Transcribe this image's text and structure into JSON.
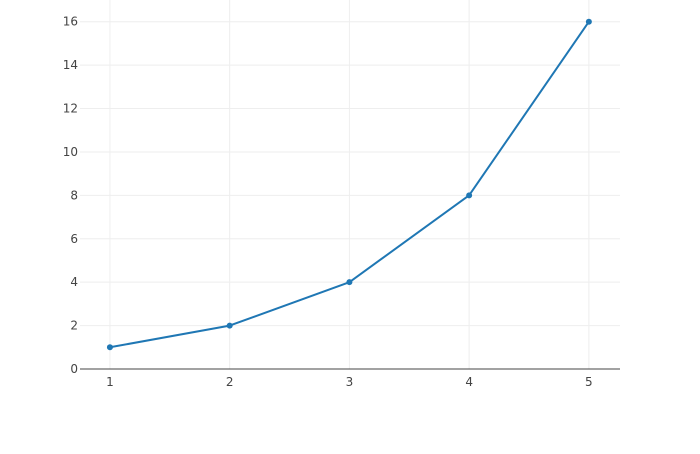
{
  "chart_data": {
    "type": "line",
    "title": "",
    "xlabel": "",
    "ylabel": "",
    "x": [
      1,
      2,
      3,
      4,
      5
    ],
    "series": [
      {
        "values": [
          1,
          2,
          4,
          8,
          16
        ],
        "color": "#1f77b4",
        "mode": "lines+markers"
      }
    ],
    "xlim": [
      0.75,
      5.26
    ],
    "ylim": [
      0,
      17
    ],
    "xticks": [
      1,
      2,
      3,
      4,
      5
    ],
    "yticks": [
      0,
      2,
      4,
      6,
      8,
      10,
      12,
      14,
      16
    ],
    "xtick_labels": [
      "1",
      "2",
      "3",
      "4",
      "5"
    ],
    "ytick_labels": [
      "0",
      "2",
      "4",
      "6",
      "8",
      "10",
      "12",
      "14",
      "16"
    ],
    "grid": true,
    "grid_color": "#eeeeee",
    "axis_color": "#444444"
  }
}
